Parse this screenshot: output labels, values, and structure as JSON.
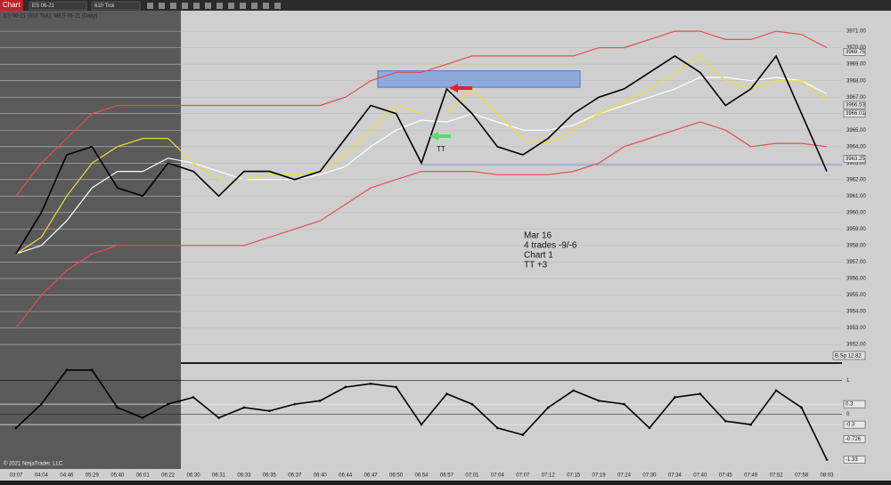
{
  "toolbar": {
    "title": "Chart",
    "instrument": "ES 06-21",
    "period": "610 Tick"
  },
  "header": "ES 06-21 (610 Tick), MES 06-21 (Daily)",
  "copyright": "© 2021 NinjaTrader, LLC",
  "annotations": {
    "note": [
      "Mar 16",
      "4  trades  -9/-6",
      "Chart 1",
      "TT    +3"
    ],
    "tag": "TT",
    "badge": "B.Sp 12.82"
  },
  "chart_data": [
    {
      "type": "line",
      "categories": [
        "03:07",
        "04:04",
        "04:46",
        "05:29",
        "05:40",
        "06:01",
        "06:22",
        "06:30",
        "06:31",
        "06:33",
        "06:35",
        "06:37",
        "06:40",
        "06:44",
        "06:47",
        "06:50",
        "06:54",
        "06:57",
        "07:01",
        "07:04",
        "07:07",
        "07:12",
        "07:15",
        "07:19",
        "07:24",
        "07:30",
        "07:34",
        "07:40",
        "07:45",
        "07:49",
        "07:52",
        "07:58",
        "08:03"
      ],
      "series": [
        {
          "color": "#e05050",
          "values": [
            3961,
            3963,
            3964.5,
            3966,
            3966.5,
            3966.5,
            3966.5,
            3966.5,
            3966.5,
            3966.5,
            3966.5,
            3966.5,
            3966.5,
            3967,
            3968,
            3968.5,
            3968.5,
            3969,
            3969.5,
            3969.5,
            3969.5,
            3969.5,
            3969.5,
            3970,
            3970,
            3970.5,
            3971,
            3971,
            3970.5,
            3970.5,
            3971,
            3970.8,
            3970
          ]
        },
        {
          "color": "#e05050",
          "values": [
            3953,
            3955,
            3956.5,
            3957.5,
            3958,
            3958,
            3958,
            3958,
            3958,
            3958,
            3958.5,
            3959,
            3959.5,
            3960.5,
            3961.5,
            3962,
            3962.5,
            3962.5,
            3962.5,
            3962.3,
            3962.3,
            3962.3,
            3962.5,
            3963,
            3964,
            3964.5,
            3965,
            3965.5,
            3965,
            3964,
            3964.2,
            3964.2,
            3964
          ]
        },
        {
          "color": "#ffffff",
          "values": [
            3957.5,
            3958,
            3959.5,
            3961.5,
            3962.5,
            3962.5,
            3963.3,
            3963,
            3962.5,
            3962,
            3962,
            3962,
            3962.3,
            3962.8,
            3964,
            3965,
            3965.6,
            3965.5,
            3966,
            3965.5,
            3965,
            3965,
            3965.3,
            3966,
            3966.5,
            3967,
            3967.5,
            3968.2,
            3968.2,
            3968,
            3968.2,
            3968,
            3967.2
          ]
        },
        {
          "color": "#e8e030",
          "values": [
            3957.5,
            3958.5,
            3961,
            3963,
            3964,
            3964.5,
            3964.5,
            3963,
            3962,
            3962,
            3962.3,
            3962.3,
            3962.5,
            3963.5,
            3965,
            3966.5,
            3966,
            3966,
            3967.5,
            3966,
            3964.5,
            3964.2,
            3965,
            3966,
            3966.7,
            3967.5,
            3968.5,
            3969.5,
            3968,
            3967.5,
            3968,
            3968,
            3966.8
          ]
        },
        {
          "color": "#000000",
          "values": [
            3957.5,
            3960,
            3963.5,
            3964,
            3961.5,
            3961,
            3963,
            3962.5,
            3961,
            3962.5,
            3962.5,
            3962,
            3962.5,
            3964.5,
            3966.5,
            3966,
            3963,
            3967.5,
            3966,
            3964,
            3963.5,
            3964.5,
            3966,
            3967,
            3967.5,
            3968.5,
            3969.5,
            3968.5,
            3966.5,
            3967.5,
            3969.5,
            3966,
            3962.5
          ]
        }
      ],
      "zone": [
        3967.6,
        3968.6
      ],
      "level": 3962.9,
      "ylim": [
        3951.3,
        3971.6
      ],
      "yticks": [
        {
          "value": 3952,
          "label": "3952.00"
        },
        {
          "value": 3953,
          "label": "3953.00"
        },
        {
          "value": 3954,
          "label": "3954.00"
        },
        {
          "value": 3955,
          "label": "3955.00"
        },
        {
          "value": 3956,
          "label": "3956.00"
        },
        {
          "value": 3957,
          "label": "3957.00"
        },
        {
          "value": 3958,
          "label": "3958.00"
        },
        {
          "value": 3959,
          "label": "3959.00"
        },
        {
          "value": 3960,
          "label": "3960.00"
        },
        {
          "value": 3961,
          "label": "3961.00"
        },
        {
          "value": 3962,
          "label": "3962.00"
        },
        {
          "value": 3963,
          "label": "3963.00"
        },
        {
          "value": 3964,
          "label": "3964.00"
        },
        {
          "value": 3965,
          "label": "3965.00"
        },
        {
          "value": 3966,
          "label": "3966.00"
        },
        {
          "value": 3967,
          "label": "3967.00"
        },
        {
          "value": 3968,
          "label": "3968.00"
        },
        {
          "value": 3969,
          "label": "3969.00"
        },
        {
          "value": 3970,
          "label": "3970.00"
        },
        {
          "value": 3971,
          "label": "3971.00"
        }
      ],
      "markers": [
        3969.75,
        3966.53,
        3966.01,
        3963.25
      ],
      "grid": true
    },
    {
      "type": "line",
      "series": [
        {
          "color": "#000000",
          "values": [
            -0.4,
            0.3,
            1.3,
            1.3,
            0.2,
            -0.1,
            0.3,
            0.5,
            -0.1,
            0.2,
            0.1,
            0.3,
            0.4,
            0.8,
            0.9,
            0.8,
            -0.3,
            0.6,
            0.3,
            -0.4,
            -0.6,
            0.2,
            0.7,
            0.4,
            0.3,
            -0.4,
            0.5,
            0.6,
            -0.2,
            -0.3,
            0.7,
            0.2,
            -1.33
          ]
        }
      ],
      "ylim": [
        -1.55,
        1.4
      ],
      "yticks": [
        1,
        0
      ],
      "markers": [
        0.3,
        -0.3,
        -0.726,
        -1.33
      ],
      "grid": true
    }
  ]
}
